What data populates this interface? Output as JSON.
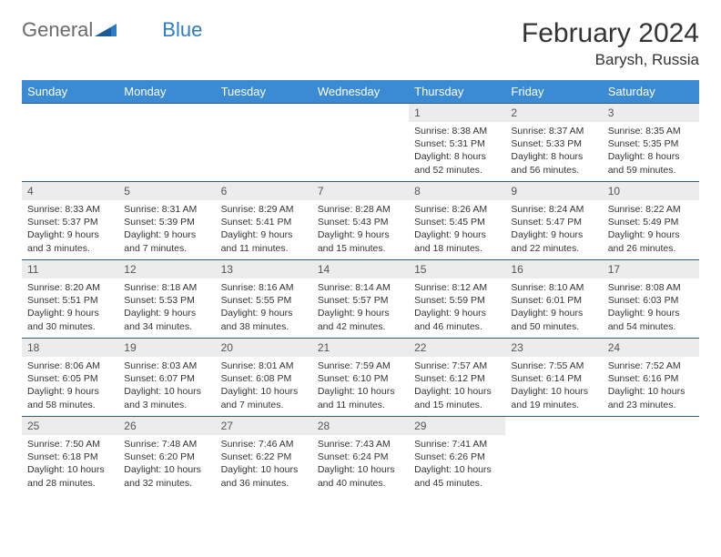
{
  "logo": {
    "word1": "General",
    "word2": "Blue"
  },
  "title": "February 2024",
  "location": "Barysh, Russia",
  "colors": {
    "header_bg": "#3b8bd4",
    "header_text": "#ffffff",
    "daynum_bg": "#ececec",
    "border": "#2f5e8e",
    "logo_gray": "#6b6b6b",
    "logo_blue": "#2d7bc4"
  },
  "days_of_week": [
    "Sunday",
    "Monday",
    "Tuesday",
    "Wednesday",
    "Thursday",
    "Friday",
    "Saturday"
  ],
  "weeks": [
    [
      null,
      null,
      null,
      null,
      {
        "n": "1",
        "sr": "Sunrise: 8:38 AM",
        "ss": "Sunset: 5:31 PM",
        "dl": "Daylight: 8 hours and 52 minutes."
      },
      {
        "n": "2",
        "sr": "Sunrise: 8:37 AM",
        "ss": "Sunset: 5:33 PM",
        "dl": "Daylight: 8 hours and 56 minutes."
      },
      {
        "n": "3",
        "sr": "Sunrise: 8:35 AM",
        "ss": "Sunset: 5:35 PM",
        "dl": "Daylight: 8 hours and 59 minutes."
      }
    ],
    [
      {
        "n": "4",
        "sr": "Sunrise: 8:33 AM",
        "ss": "Sunset: 5:37 PM",
        "dl": "Daylight: 9 hours and 3 minutes."
      },
      {
        "n": "5",
        "sr": "Sunrise: 8:31 AM",
        "ss": "Sunset: 5:39 PM",
        "dl": "Daylight: 9 hours and 7 minutes."
      },
      {
        "n": "6",
        "sr": "Sunrise: 8:29 AM",
        "ss": "Sunset: 5:41 PM",
        "dl": "Daylight: 9 hours and 11 minutes."
      },
      {
        "n": "7",
        "sr": "Sunrise: 8:28 AM",
        "ss": "Sunset: 5:43 PM",
        "dl": "Daylight: 9 hours and 15 minutes."
      },
      {
        "n": "8",
        "sr": "Sunrise: 8:26 AM",
        "ss": "Sunset: 5:45 PM",
        "dl": "Daylight: 9 hours and 18 minutes."
      },
      {
        "n": "9",
        "sr": "Sunrise: 8:24 AM",
        "ss": "Sunset: 5:47 PM",
        "dl": "Daylight: 9 hours and 22 minutes."
      },
      {
        "n": "10",
        "sr": "Sunrise: 8:22 AM",
        "ss": "Sunset: 5:49 PM",
        "dl": "Daylight: 9 hours and 26 minutes."
      }
    ],
    [
      {
        "n": "11",
        "sr": "Sunrise: 8:20 AM",
        "ss": "Sunset: 5:51 PM",
        "dl": "Daylight: 9 hours and 30 minutes."
      },
      {
        "n": "12",
        "sr": "Sunrise: 8:18 AM",
        "ss": "Sunset: 5:53 PM",
        "dl": "Daylight: 9 hours and 34 minutes."
      },
      {
        "n": "13",
        "sr": "Sunrise: 8:16 AM",
        "ss": "Sunset: 5:55 PM",
        "dl": "Daylight: 9 hours and 38 minutes."
      },
      {
        "n": "14",
        "sr": "Sunrise: 8:14 AM",
        "ss": "Sunset: 5:57 PM",
        "dl": "Daylight: 9 hours and 42 minutes."
      },
      {
        "n": "15",
        "sr": "Sunrise: 8:12 AM",
        "ss": "Sunset: 5:59 PM",
        "dl": "Daylight: 9 hours and 46 minutes."
      },
      {
        "n": "16",
        "sr": "Sunrise: 8:10 AM",
        "ss": "Sunset: 6:01 PM",
        "dl": "Daylight: 9 hours and 50 minutes."
      },
      {
        "n": "17",
        "sr": "Sunrise: 8:08 AM",
        "ss": "Sunset: 6:03 PM",
        "dl": "Daylight: 9 hours and 54 minutes."
      }
    ],
    [
      {
        "n": "18",
        "sr": "Sunrise: 8:06 AM",
        "ss": "Sunset: 6:05 PM",
        "dl": "Daylight: 9 hours and 58 minutes."
      },
      {
        "n": "19",
        "sr": "Sunrise: 8:03 AM",
        "ss": "Sunset: 6:07 PM",
        "dl": "Daylight: 10 hours and 3 minutes."
      },
      {
        "n": "20",
        "sr": "Sunrise: 8:01 AM",
        "ss": "Sunset: 6:08 PM",
        "dl": "Daylight: 10 hours and 7 minutes."
      },
      {
        "n": "21",
        "sr": "Sunrise: 7:59 AM",
        "ss": "Sunset: 6:10 PM",
        "dl": "Daylight: 10 hours and 11 minutes."
      },
      {
        "n": "22",
        "sr": "Sunrise: 7:57 AM",
        "ss": "Sunset: 6:12 PM",
        "dl": "Daylight: 10 hours and 15 minutes."
      },
      {
        "n": "23",
        "sr": "Sunrise: 7:55 AM",
        "ss": "Sunset: 6:14 PM",
        "dl": "Daylight: 10 hours and 19 minutes."
      },
      {
        "n": "24",
        "sr": "Sunrise: 7:52 AM",
        "ss": "Sunset: 6:16 PM",
        "dl": "Daylight: 10 hours and 23 minutes."
      }
    ],
    [
      {
        "n": "25",
        "sr": "Sunrise: 7:50 AM",
        "ss": "Sunset: 6:18 PM",
        "dl": "Daylight: 10 hours and 28 minutes."
      },
      {
        "n": "26",
        "sr": "Sunrise: 7:48 AM",
        "ss": "Sunset: 6:20 PM",
        "dl": "Daylight: 10 hours and 32 minutes."
      },
      {
        "n": "27",
        "sr": "Sunrise: 7:46 AM",
        "ss": "Sunset: 6:22 PM",
        "dl": "Daylight: 10 hours and 36 minutes."
      },
      {
        "n": "28",
        "sr": "Sunrise: 7:43 AM",
        "ss": "Sunset: 6:24 PM",
        "dl": "Daylight: 10 hours and 40 minutes."
      },
      {
        "n": "29",
        "sr": "Sunrise: 7:41 AM",
        "ss": "Sunset: 6:26 PM",
        "dl": "Daylight: 10 hours and 45 minutes."
      },
      null,
      null
    ]
  ]
}
